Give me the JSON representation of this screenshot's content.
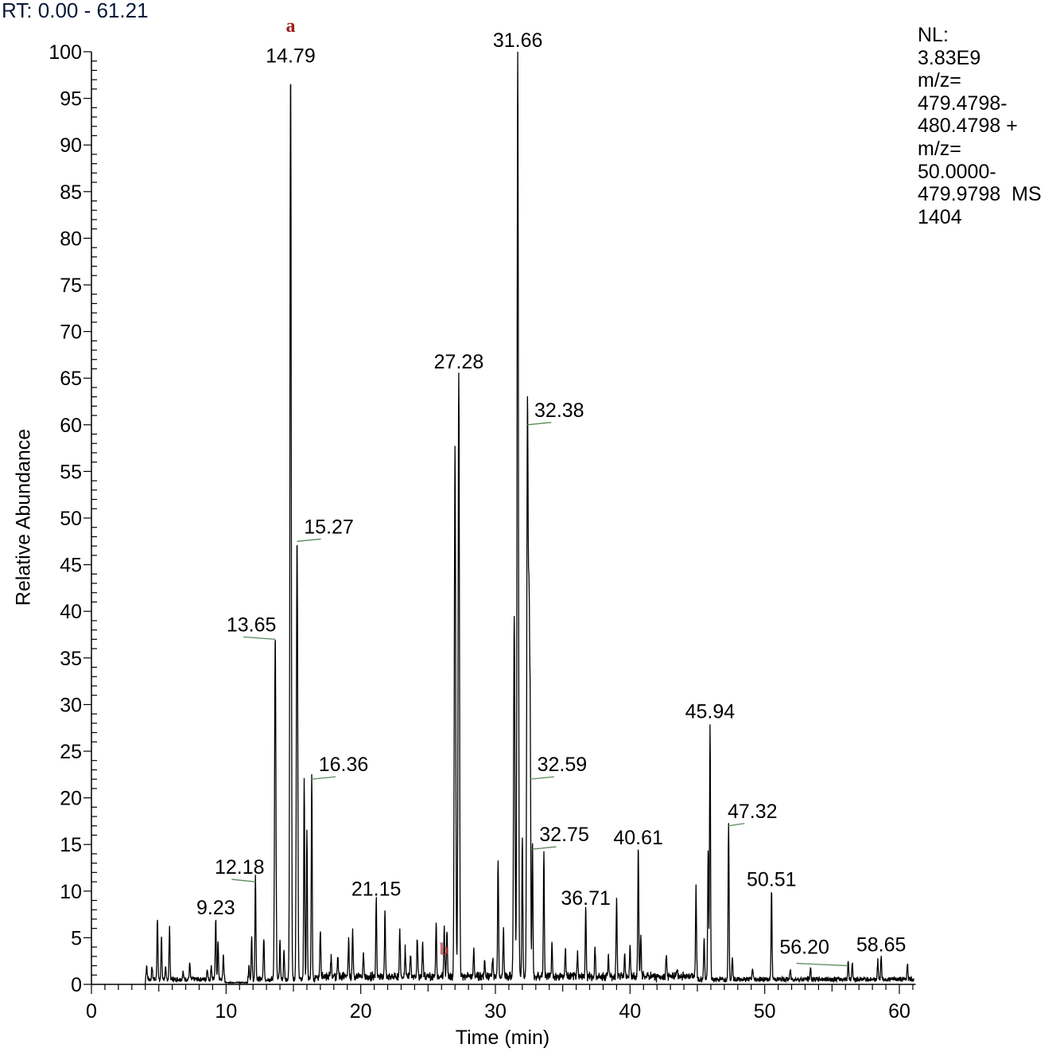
{
  "header": {
    "rt_range": "RT: 0.00 - 61.21"
  },
  "info_panel": {
    "lines": [
      "NL:",
      "3.83E9",
      "m/z=",
      "479.4798-",
      "480.4798 +",
      "m/z=",
      "50.0000-",
      "479.9798  MS",
      "1404"
    ]
  },
  "annotations": {
    "a": {
      "label": "a",
      "x": 14.79,
      "color": "#9b1c1c"
    },
    "b": {
      "label": "b",
      "x": 26.2,
      "color": "#c0393b"
    }
  },
  "chart_data": {
    "type": "line",
    "title": "RT: 0.00 - 61.21",
    "xlabel": "Time (min)",
    "ylabel": "Relative Abundance",
    "xlim": [
      0,
      61.21
    ],
    "ylim": [
      0,
      100
    ],
    "x_ticks": [
      0,
      10,
      20,
      30,
      40,
      50,
      60
    ],
    "y_ticks": [
      0,
      5,
      10,
      15,
      20,
      25,
      30,
      35,
      40,
      45,
      50,
      55,
      60,
      65,
      70,
      75,
      80,
      85,
      90,
      95,
      100
    ],
    "grid": false,
    "normalization_level": "3.83E9",
    "labeled_peaks": [
      {
        "rt": 9.23,
        "label": "9.23",
        "abundance": 6.5
      },
      {
        "rt": 12.18,
        "label": "12.18",
        "abundance": 11
      },
      {
        "rt": 13.65,
        "label": "13.65",
        "abundance": 37
      },
      {
        "rt": 14.79,
        "label": "14.79",
        "abundance": 98
      },
      {
        "rt": 15.27,
        "label": "15.27",
        "abundance": 47.5
      },
      {
        "rt": 16.36,
        "label": "16.36",
        "abundance": 22
      },
      {
        "rt": 21.15,
        "label": "21.15",
        "abundance": 8.5
      },
      {
        "rt": 27.28,
        "label": "27.28",
        "abundance": 65
      },
      {
        "rt": 31.66,
        "label": "31.66",
        "abundance": 100
      },
      {
        "rt": 32.38,
        "label": "32.38",
        "abundance": 60
      },
      {
        "rt": 32.59,
        "label": "32.59",
        "abundance": 22
      },
      {
        "rt": 32.75,
        "label": "32.75",
        "abundance": 14.5
      },
      {
        "rt": 36.71,
        "label": "36.71",
        "abundance": 7.5
      },
      {
        "rt": 40.61,
        "label": "40.61",
        "abundance": 14
      },
      {
        "rt": 45.94,
        "label": "45.94",
        "abundance": 27.5
      },
      {
        "rt": 47.32,
        "label": "47.32",
        "abundance": 17
      },
      {
        "rt": 50.51,
        "label": "50.51",
        "abundance": 9.5
      },
      {
        "rt": 56.2,
        "label": "56.20",
        "abundance": 2
      },
      {
        "rt": 58.65,
        "label": "58.65",
        "abundance": 2.5
      }
    ],
    "minor_peaks": [
      [
        4.1,
        1.5
      ],
      [
        4.5,
        1.3
      ],
      [
        4.9,
        6.5
      ],
      [
        5.2,
        4.5
      ],
      [
        5.5,
        1.2
      ],
      [
        5.8,
        5.5
      ],
      [
        6.8,
        0.8
      ],
      [
        7.3,
        1.7
      ],
      [
        8.6,
        1.2
      ],
      [
        8.9,
        1.5
      ],
      [
        9.4,
        4
      ],
      [
        9.8,
        2.7
      ],
      [
        11.7,
        1.5
      ],
      [
        11.9,
        4.5
      ],
      [
        12.8,
        4.5
      ],
      [
        14.0,
        4
      ],
      [
        14.3,
        3
      ],
      [
        15.8,
        21.5
      ],
      [
        16.0,
        16
      ],
      [
        17.0,
        5
      ],
      [
        17.8,
        2.2
      ],
      [
        18.3,
        2
      ],
      [
        19.1,
        4
      ],
      [
        19.4,
        4.7
      ],
      [
        20.2,
        2.3
      ],
      [
        21.8,
        7
      ],
      [
        22.9,
        5
      ],
      [
        23.3,
        3
      ],
      [
        23.7,
        2.5
      ],
      [
        24.2,
        4.2
      ],
      [
        24.6,
        3.4
      ],
      [
        25.6,
        5.5
      ],
      [
        26.2,
        5.6
      ],
      [
        26.4,
        4.8
      ],
      [
        27.0,
        57
      ],
      [
        28.4,
        2.9
      ],
      [
        29.2,
        1.8
      ],
      [
        29.8,
        2
      ],
      [
        30.2,
        12.5
      ],
      [
        30.6,
        5
      ],
      [
        31.4,
        39
      ],
      [
        32.0,
        15
      ],
      [
        32.5,
        38.5
      ],
      [
        33.6,
        13.5
      ],
      [
        34.2,
        3.5
      ],
      [
        35.2,
        3
      ],
      [
        36.1,
        2.7
      ],
      [
        37.4,
        3
      ],
      [
        38.4,
        2
      ],
      [
        39.0,
        8.5
      ],
      [
        39.6,
        2.5
      ],
      [
        40.0,
        3.5
      ],
      [
        40.8,
        4.5
      ],
      [
        42.7,
        2.5
      ],
      [
        43.5,
        1
      ],
      [
        44.9,
        9.5
      ],
      [
        45.5,
        4.5
      ],
      [
        45.8,
        14
      ],
      [
        47.6,
        2.5
      ],
      [
        49.1,
        1.2
      ],
      [
        51.9,
        1
      ],
      [
        53.4,
        1.2
      ],
      [
        56.5,
        1.8
      ],
      [
        58.4,
        2
      ],
      [
        60.6,
        1.8
      ]
    ]
  }
}
